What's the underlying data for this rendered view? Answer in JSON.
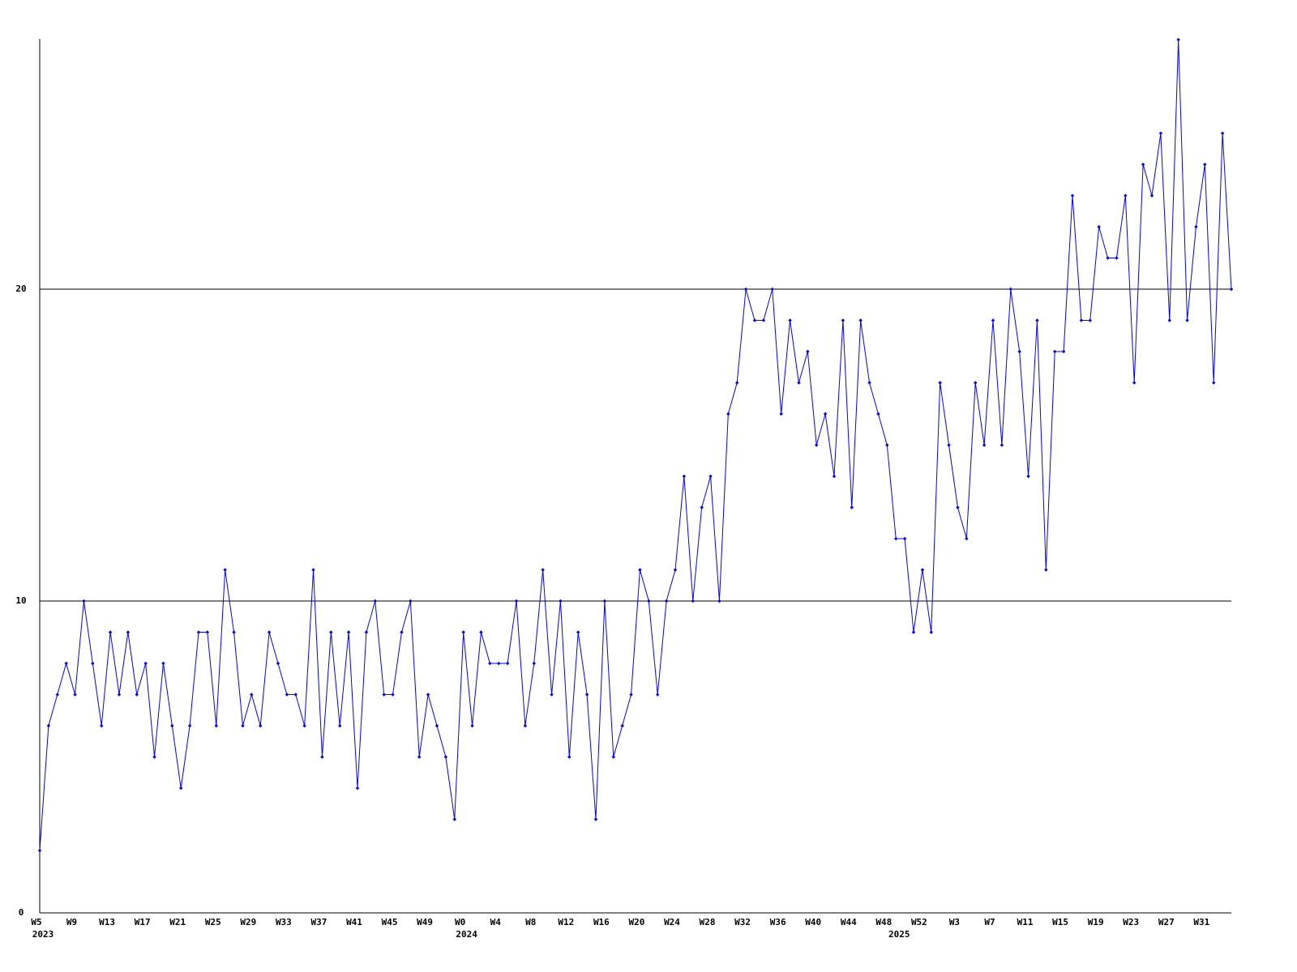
{
  "chart_data": {
    "type": "line",
    "categories": [
      "W5",
      null,
      null,
      null,
      "W9",
      null,
      null,
      null,
      "W13",
      null,
      null,
      null,
      "W17",
      null,
      null,
      null,
      "W21",
      null,
      null,
      null,
      "W25",
      null,
      null,
      null,
      "W29",
      null,
      null,
      null,
      "W33",
      null,
      null,
      null,
      "W37",
      null,
      null,
      null,
      "W41",
      null,
      null,
      null,
      "W45",
      null,
      null,
      null,
      "W49",
      null,
      null,
      null,
      "W0",
      null,
      null,
      null,
      "W4",
      null,
      null,
      null,
      "W8",
      null,
      null,
      null,
      "W12",
      null,
      null,
      null,
      "W16",
      null,
      null,
      null,
      "W20",
      null,
      null,
      null,
      "W24",
      null,
      null,
      null,
      "W28",
      null,
      null,
      null,
      "W32",
      null,
      null,
      null,
      "W36",
      null,
      null,
      null,
      "W40",
      null,
      null,
      null,
      "W44",
      null,
      null,
      null,
      "W48",
      null,
      null,
      null,
      "W52",
      null,
      null,
      null,
      "W3",
      null,
      null,
      null,
      "W7",
      null,
      null,
      null,
      "W11",
      null,
      null,
      null,
      "W15",
      null,
      null,
      null,
      "W19",
      null,
      null,
      null,
      "W23",
      null,
      null,
      null,
      "W27",
      null,
      null,
      null,
      "W31",
      null,
      null,
      null
    ],
    "years": [
      "2023",
      null,
      null,
      null,
      null,
      null,
      null,
      null,
      null,
      null,
      null,
      null,
      null,
      null,
      null,
      null,
      null,
      null,
      null,
      null,
      null,
      null,
      null,
      null,
      null,
      null,
      null,
      null,
      null,
      null,
      null,
      null,
      null,
      null,
      null,
      null,
      null,
      null,
      null,
      null,
      null,
      null,
      null,
      null,
      null,
      null,
      null,
      null,
      "2024",
      null,
      null,
      null,
      null,
      null,
      null,
      null,
      null,
      null,
      null,
      null,
      null,
      null,
      null,
      null,
      null,
      null,
      null,
      null,
      null,
      null,
      null,
      null,
      null,
      null,
      null,
      null,
      null,
      null,
      null,
      null,
      null,
      null,
      null,
      null,
      null,
      null,
      null,
      null,
      null,
      null,
      null,
      null,
      null,
      null,
      null,
      null,
      null,
      "2025",
      null,
      null,
      null,
      null,
      null,
      null,
      null,
      null,
      null,
      null,
      null,
      null,
      null,
      null,
      null,
      null,
      null,
      null,
      null,
      null,
      null,
      null,
      null,
      null,
      null,
      null,
      null,
      null,
      null,
      null,
      null,
      null,
      null,
      null,
      null,
      null,
      null,
      null
    ],
    "series": [
      {
        "color": "#0000ff",
        "values": [
          2,
          6,
          7,
          8,
          7,
          10,
          8,
          6,
          9,
          7,
          9,
          7,
          8,
          5,
          8,
          6,
          4,
          6,
          9,
          9,
          6,
          11,
          9,
          6,
          7,
          6,
          9,
          8,
          7,
          7,
          6,
          11,
          5,
          9,
          6,
          9,
          4,
          9,
          10,
          7,
          7,
          9,
          10,
          5,
          7,
          6,
          5,
          3,
          9,
          6,
          9,
          8,
          8,
          8,
          10,
          6,
          8,
          11,
          7,
          10,
          5,
          9,
          7,
          3,
          10,
          5,
          6,
          7,
          11,
          10,
          7,
          10,
          11,
          14,
          10,
          13,
          14,
          10,
          16,
          17,
          20,
          19,
          19,
          20,
          16,
          19,
          17,
          18,
          15,
          16,
          14,
          19,
          13,
          19,
          17,
          16,
          15,
          12,
          12,
          9,
          11,
          9,
          17,
          15,
          13,
          12,
          17,
          15,
          19,
          15,
          20,
          18,
          14,
          19,
          11,
          18,
          18,
          23,
          19,
          19,
          22,
          21,
          21,
          23,
          17,
          24,
          23,
          25,
          19,
          28,
          19,
          22,
          24,
          17,
          25,
          20
        ]
      }
    ],
    "ylim": [
      0,
      28
    ],
    "yticks": [
      0,
      10,
      20
    ],
    "grid": true
  }
}
